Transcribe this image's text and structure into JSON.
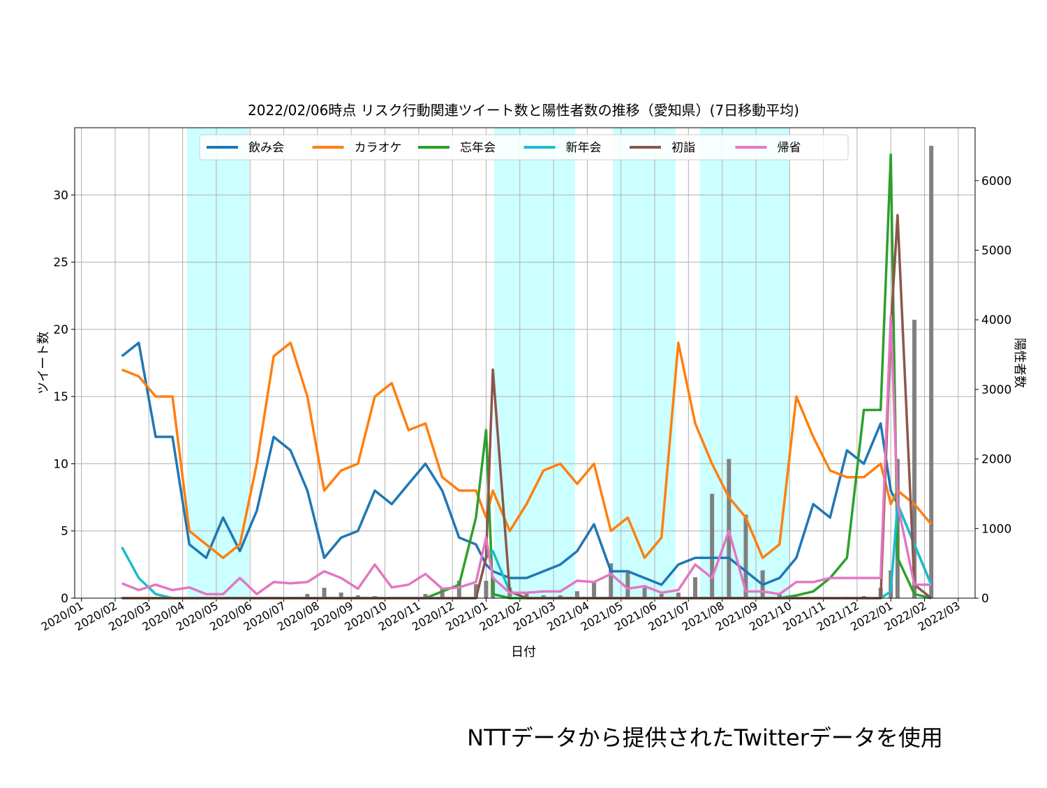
{
  "chart_data": {
    "type": "line",
    "title": "2022/02/06時点 リスク行動関連ツイート数と陽性者数の推移（愛知県）(7日移動平均)",
    "xlabel": "日付",
    "ylabel": "ツイート数",
    "y2label": "陽性者数",
    "footer": "NTTデータから提供されたTwitterデータを使用",
    "grid": true,
    "legend": "top",
    "xlim": [
      -0.2,
      26.5
    ],
    "ylim": [
      0,
      35
    ],
    "y2lim": [
      0,
      6760
    ],
    "xticks": [
      {
        "value": 0,
        "label": "2020/01"
      },
      {
        "value": 1,
        "label": "2020/02"
      },
      {
        "value": 2,
        "label": "2020/03"
      },
      {
        "value": 3,
        "label": "2020/04"
      },
      {
        "value": 4,
        "label": "2020/05"
      },
      {
        "value": 5,
        "label": "2020/06"
      },
      {
        "value": 6,
        "label": "2020/07"
      },
      {
        "value": 7,
        "label": "2020/08"
      },
      {
        "value": 8,
        "label": "2020/09"
      },
      {
        "value": 9,
        "label": "2020/10"
      },
      {
        "value": 10,
        "label": "2020/11"
      },
      {
        "value": 11,
        "label": "2020/12"
      },
      {
        "value": 12,
        "label": "2021/01"
      },
      {
        "value": 13,
        "label": "2021/02"
      },
      {
        "value": 14,
        "label": "2021/03"
      },
      {
        "value": 15,
        "label": "2021/04"
      },
      {
        "value": 16,
        "label": "2021/05"
      },
      {
        "value": 17,
        "label": "2021/06"
      },
      {
        "value": 18,
        "label": "2021/07"
      },
      {
        "value": 19,
        "label": "2021/08"
      },
      {
        "value": 20,
        "label": "2021/09"
      },
      {
        "value": 21,
        "label": "2021/10"
      },
      {
        "value": 22,
        "label": "2021/11"
      },
      {
        "value": 23,
        "label": "2021/12"
      },
      {
        "value": 24,
        "label": "2022/01"
      },
      {
        "value": 25,
        "label": "2022/02"
      },
      {
        "value": 26,
        "label": "2022/03"
      }
    ],
    "yticks": [
      0,
      5,
      10,
      15,
      20,
      25,
      30
    ],
    "y2ticks": [
      0,
      1000,
      2000,
      3000,
      4000,
      5000,
      6000
    ],
    "shaded_spans": [
      [
        3.13,
        4.97
      ],
      [
        12.24,
        14.64
      ],
      [
        15.76,
        17.62
      ],
      [
        18.34,
        21.01
      ]
    ],
    "shade_color": "#ccffff",
    "x": [
      1.2,
      1.7,
      2.2,
      2.7,
      3.2,
      3.7,
      4.2,
      4.7,
      5.2,
      5.7,
      6.2,
      6.7,
      7.2,
      7.7,
      8.2,
      8.7,
      9.2,
      9.7,
      10.2,
      10.7,
      11.2,
      11.7,
      12.0,
      12.2,
      12.7,
      13.2,
      13.7,
      14.2,
      14.7,
      15.2,
      15.7,
      16.2,
      16.7,
      17.2,
      17.7,
      18.2,
      18.7,
      19.2,
      19.7,
      20.2,
      20.7,
      21.2,
      21.7,
      22.2,
      22.7,
      23.2,
      23.7,
      24.0,
      24.2,
      24.7,
      25.2
    ],
    "bars": {
      "axis": "y2",
      "color": "#808080",
      "values": [
        10,
        10,
        10,
        10,
        10,
        10,
        5,
        5,
        5,
        10,
        20,
        60,
        150,
        80,
        40,
        30,
        20,
        20,
        60,
        150,
        250,
        200,
        250,
        300,
        150,
        60,
        40,
        40,
        100,
        250,
        500,
        400,
        150,
        60,
        80,
        300,
        1500,
        2000,
        1200,
        400,
        80,
        20,
        10,
        10,
        20,
        30,
        150,
        400,
        2000,
        4000,
        6500
      ]
    },
    "series": [
      {
        "name": "飲み会",
        "color": "#1f77b4",
        "values": [
          18,
          19,
          12,
          12,
          4,
          3,
          6,
          3.5,
          6.5,
          12,
          11,
          8,
          3,
          4.5,
          5,
          8,
          7,
          8.5,
          10,
          8,
          4.5,
          4,
          2.5,
          2,
          1.5,
          1.5,
          2,
          2.5,
          3.5,
          5.5,
          2,
          2,
          1.5,
          1,
          2.5,
          3,
          3,
          3,
          2,
          1,
          1.5,
          3,
          7,
          6,
          11,
          10,
          13,
          8,
          7,
          4,
          1
        ]
      },
      {
        "name": "カラオケ",
        "color": "#ff7f0e",
        "values": [
          17,
          16.5,
          15,
          15,
          5,
          4,
          3,
          4,
          10,
          18,
          19,
          15,
          8,
          9.5,
          10,
          15,
          16,
          12.5,
          13,
          9,
          8,
          8,
          6,
          8,
          5,
          7,
          9.5,
          10,
          8.5,
          10,
          5,
          6,
          3,
          4.5,
          19,
          13,
          10,
          7.5,
          6,
          3,
          4,
          15,
          12,
          9.5,
          9,
          9,
          10,
          7,
          8,
          7,
          5.5
        ]
      },
      {
        "name": "忘年会",
        "color": "#2ca02c",
        "values": [
          0,
          0,
          0,
          0,
          0,
          0,
          0,
          0,
          0,
          0,
          0,
          0,
          0,
          0,
          0,
          0,
          0,
          0,
          0,
          0.5,
          1,
          6,
          12.5,
          0.3,
          0,
          0,
          0,
          0,
          0,
          0,
          0,
          0,
          0,
          0,
          0,
          0,
          0,
          0,
          0,
          0,
          0,
          0.2,
          0.5,
          1.5,
          3,
          14,
          14,
          33,
          3,
          0.3,
          0
        ]
      },
      {
        "name": "新年会",
        "color": "#17becf",
        "values": [
          3.8,
          1.5,
          0.3,
          0,
          0,
          0,
          0,
          0,
          0,
          0,
          0,
          0,
          0,
          0,
          0,
          0,
          0,
          0,
          0,
          0,
          0,
          0,
          3,
          3.5,
          0.5,
          0,
          0,
          0,
          0,
          0,
          0,
          0,
          0,
          0,
          0,
          0,
          0,
          0,
          0,
          0,
          0,
          0,
          0,
          0,
          0,
          0,
          0,
          0.5,
          7,
          4,
          1
        ]
      },
      {
        "name": "初詣",
        "color": "#8c564b",
        "values": [
          0,
          0,
          0,
          0,
          0,
          0,
          0,
          0,
          0,
          0,
          0,
          0,
          0,
          0,
          0,
          0,
          0,
          0,
          0,
          0,
          0,
          0,
          3,
          17,
          0.5,
          0,
          0,
          0,
          0,
          0,
          0,
          0,
          0,
          0,
          0,
          0,
          0,
          0,
          0,
          0,
          0,
          0,
          0,
          0,
          0,
          0,
          0,
          20,
          28.5,
          1,
          0
        ]
      },
      {
        "name": "帰省",
        "color": "#e377c2",
        "values": [
          1.1,
          0.6,
          1,
          0.6,
          0.8,
          0.3,
          0.3,
          1.5,
          0.3,
          1.2,
          1.1,
          1.2,
          2,
          1.5,
          0.7,
          2.5,
          0.8,
          1,
          1.8,
          0.7,
          0.8,
          1.2,
          4.5,
          1.5,
          0.4,
          0.4,
          0.5,
          0.5,
          1.3,
          1.2,
          1.8,
          0.7,
          0.9,
          0.4,
          0.6,
          2.5,
          1.5,
          5,
          0.5,
          0.5,
          0.3,
          1.2,
          1.2,
          1.5,
          1.5,
          1.5,
          1.5,
          21,
          7,
          1,
          1
        ]
      }
    ]
  }
}
